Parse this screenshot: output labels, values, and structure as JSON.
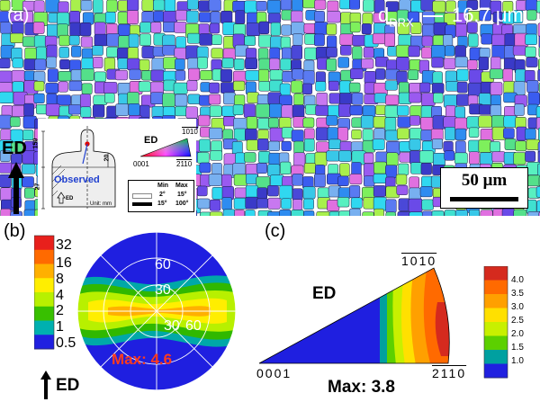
{
  "colors": {
    "background": "#ffffff",
    "pole_blue": "#1f1fe0",
    "ipf_red": "#ff0000",
    "ipf_green": "#00ff00",
    "ipf_blue": "#0000ff",
    "max_label": "#ff3b1f",
    "overlay_text": "#ffffff"
  },
  "panel_a": {
    "label": "(a)",
    "size_symbol": "d",
    "size_subscript": "DRX",
    "size_value": "16.7 μm",
    "scale_bar_label": "50 μm",
    "direction_label": "ED",
    "inset": {
      "dims": [
        "150",
        "27",
        "20"
      ],
      "observed_label": "Observed",
      "ed_mark": "ED",
      "unit_label": "Unit: mm"
    },
    "ipf_key": {
      "title": "ED",
      "top_label": "1010",
      "left_label": "0001",
      "right_label": "2110"
    },
    "boundary_table": {
      "header": [
        "Min",
        "Max"
      ],
      "rows": [
        {
          "min": "2°",
          "max": "15°",
          "color": "#ffffff"
        },
        {
          "min": "15°",
          "max": "100°",
          "color": "#000000"
        }
      ]
    }
  },
  "panel_b": {
    "label": "(b)",
    "colorbar_ticks": [
      "32",
      "16",
      "8",
      "4",
      "2",
      "1",
      "0.5"
    ],
    "colorbar_colors": [
      "#e8201c",
      "#ff6a00",
      "#ffb000",
      "#ffee00",
      "#b8f000",
      "#38c000",
      "#00b0b0",
      "#2020e0"
    ],
    "ring_labels": [
      "60",
      "30",
      "30",
      "60"
    ],
    "max_label": "Max: 4.6",
    "direction_label": "ED"
  },
  "panel_c": {
    "label": "(c)",
    "direction_label": "ED",
    "top_label": "1010",
    "left_label": "0001",
    "right_label": "2110",
    "max_label": "Max: 3.8",
    "colorbar_ticks": [
      "4.0",
      "3.5",
      "3.0",
      "2.5",
      "2.0",
      "1.5",
      "1.0"
    ],
    "colorbar_colors": [
      "#d52a1e",
      "#ff6a00",
      "#ffa000",
      "#ffe000",
      "#c8f000",
      "#5cd000",
      "#00a0a0",
      "#2020e0"
    ]
  }
}
